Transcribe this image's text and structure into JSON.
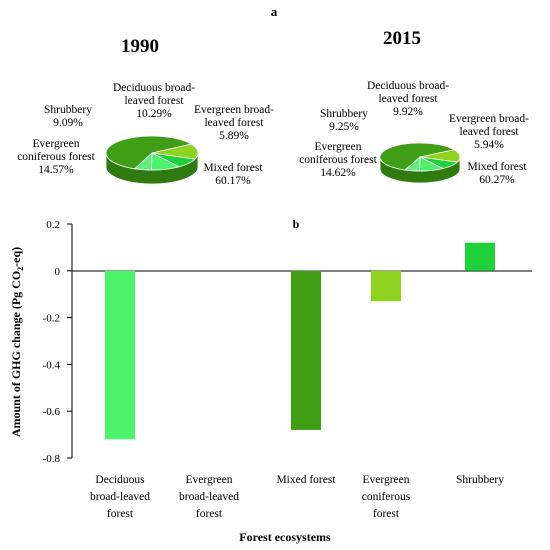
{
  "colors": {
    "mixed": "#3f9d16",
    "mixed_side": "#2f7b10",
    "coniferous": "#8fd321",
    "shrubbery": "#1ed03a",
    "deciduous": "#4cf26a",
    "evergreen_broad": "#5ef07a",
    "axis": "#000000"
  },
  "chart_data": [
    {
      "type": "pie",
      "panel_label": "a",
      "title": "1990",
      "slices": [
        {
          "label_lines": [
            "Mixed forest",
            "60.17%"
          ],
          "value": 60.17,
          "color_key": "mixed"
        },
        {
          "label_lines": [
            "Evergreen",
            "coniferous forest",
            "14.57%"
          ],
          "value": 14.57,
          "color_key": "coniferous"
        },
        {
          "label_lines": [
            "Shrubbery",
            "9.09%"
          ],
          "value": 9.09,
          "color_key": "shrubbery"
        },
        {
          "label_lines": [
            "Deciduous broad-",
            "leaved forest",
            "10.29%"
          ],
          "value": 10.29,
          "color_key": "deciduous"
        },
        {
          "label_lines": [
            "Evergreen broad-",
            "leaved forest",
            "5.89%"
          ],
          "value": 5.89,
          "color_key": "evergreen_broad"
        }
      ]
    },
    {
      "type": "pie",
      "title": "2015",
      "slices": [
        {
          "label_lines": [
            "Mixed forest",
            "60.27%"
          ],
          "value": 60.27,
          "color_key": "mixed"
        },
        {
          "label_lines": [
            "Evergreen",
            "coniferous forest",
            "14.62%"
          ],
          "value": 14.62,
          "color_key": "coniferous"
        },
        {
          "label_lines": [
            "Shrubbery",
            "9.25%"
          ],
          "value": 9.25,
          "color_key": "shrubbery"
        },
        {
          "label_lines": [
            "Deciduous broad-",
            "leaved forest",
            "9.92%"
          ],
          "value": 9.92,
          "color_key": "deciduous"
        },
        {
          "label_lines": [
            "Evergreen broad-",
            "leaved forest",
            "5.94%"
          ],
          "value": 5.94,
          "color_key": "evergreen_broad"
        }
      ]
    },
    {
      "type": "bar",
      "panel_label": "b",
      "categories": [
        [
          "Deciduous",
          "broad-leaved",
          "forest"
        ],
        [
          "Evergreen",
          "broad-leaved",
          "forest"
        ],
        [
          "Mixed forest"
        ],
        [
          "Evergreen",
          "coniferous",
          "forest"
        ],
        [
          "Shrubbery"
        ]
      ],
      "values": [
        -0.72,
        0.0,
        -0.68,
        -0.13,
        0.12
      ],
      "bar_color_keys": [
        "deciduous",
        "evergreen_broad",
        "mixed",
        "coniferous",
        "shrubbery"
      ],
      "ylabel_parts": [
        "Amount of GHG change (Pg CO",
        "2",
        "-eq)"
      ],
      "xlabel": "Forest ecosystems",
      "ylim": [
        -0.8,
        0.2
      ],
      "yticks": [
        "0.2",
        "0",
        "-0.2",
        "-0.4",
        "-0.6",
        "-0.8"
      ],
      "ytick_values": [
        0.2,
        0,
        -0.2,
        -0.4,
        -0.6,
        -0.8
      ],
      "grid": false
    }
  ]
}
